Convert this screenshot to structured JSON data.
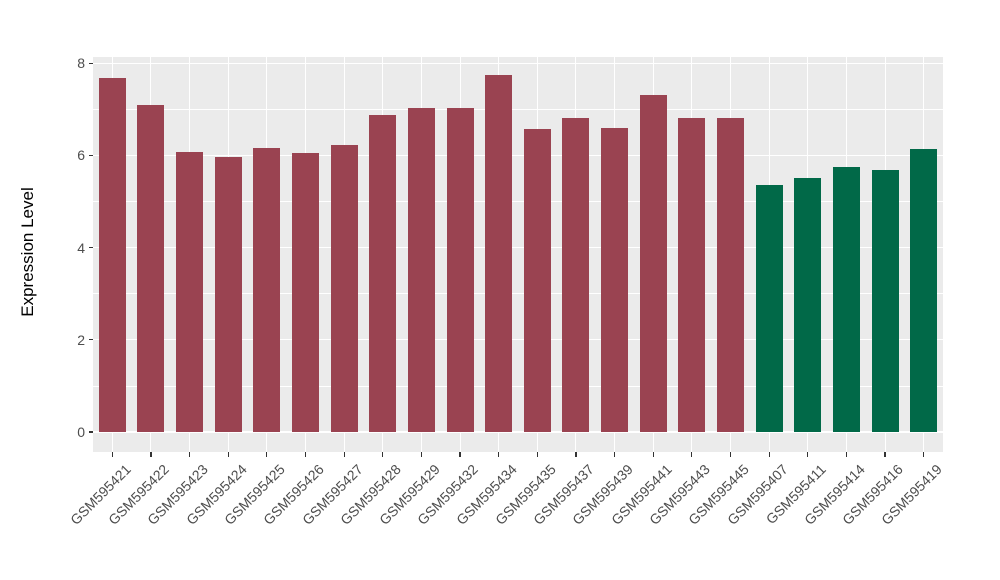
{
  "figure": {
    "background": "#FFFFFF"
  },
  "chart_data": {
    "type": "bar",
    "title": "",
    "xlabel": "",
    "ylabel": "Expression Level",
    "categories": [
      "GSM595421",
      "GSM595422",
      "GSM595423",
      "GSM595424",
      "GSM595425",
      "GSM595426",
      "GSM595427",
      "GSM595428",
      "GSM595429",
      "GSM595432",
      "GSM595434",
      "GSM595435",
      "GSM595437",
      "GSM595439",
      "GSM595441",
      "GSM595443",
      "GSM595445",
      "GSM595407",
      "GSM595411",
      "GSM595414",
      "GSM595416",
      "GSM595419"
    ],
    "values": [
      7.67,
      7.09,
      6.07,
      5.97,
      6.17,
      6.06,
      6.22,
      6.88,
      7.03,
      7.03,
      7.74,
      6.57,
      6.81,
      6.59,
      7.31,
      6.81,
      6.81,
      5.36,
      5.51,
      5.75,
      5.68,
      6.14
    ],
    "bar_colors": [
      "#9A4351",
      "#9A4351",
      "#9A4351",
      "#9A4351",
      "#9A4351",
      "#9A4351",
      "#9A4351",
      "#9A4351",
      "#9A4351",
      "#9A4351",
      "#9A4351",
      "#9A4351",
      "#9A4351",
      "#9A4351",
      "#9A4351",
      "#9A4351",
      "#9A4351",
      "#016948",
      "#016948",
      "#016948",
      "#016948",
      "#016948"
    ],
    "group_counts": {
      "maroon": 17,
      "green": 5
    },
    "yticks": [
      0,
      2,
      4,
      6,
      8
    ],
    "minor_yticks": [
      1,
      3,
      5,
      7
    ],
    "ylim": [
      -0.4,
      8.1
    ],
    "grid": true,
    "legend": false,
    "colors": {
      "panel_background": "#EBEBEB",
      "grid": "#FFFFFF",
      "tick_text": "#4D4D4D",
      "tick_mark": "#333333",
      "axis_title": "#000000",
      "bar_maroon": "#9A4351",
      "bar_green": "#016948"
    }
  }
}
